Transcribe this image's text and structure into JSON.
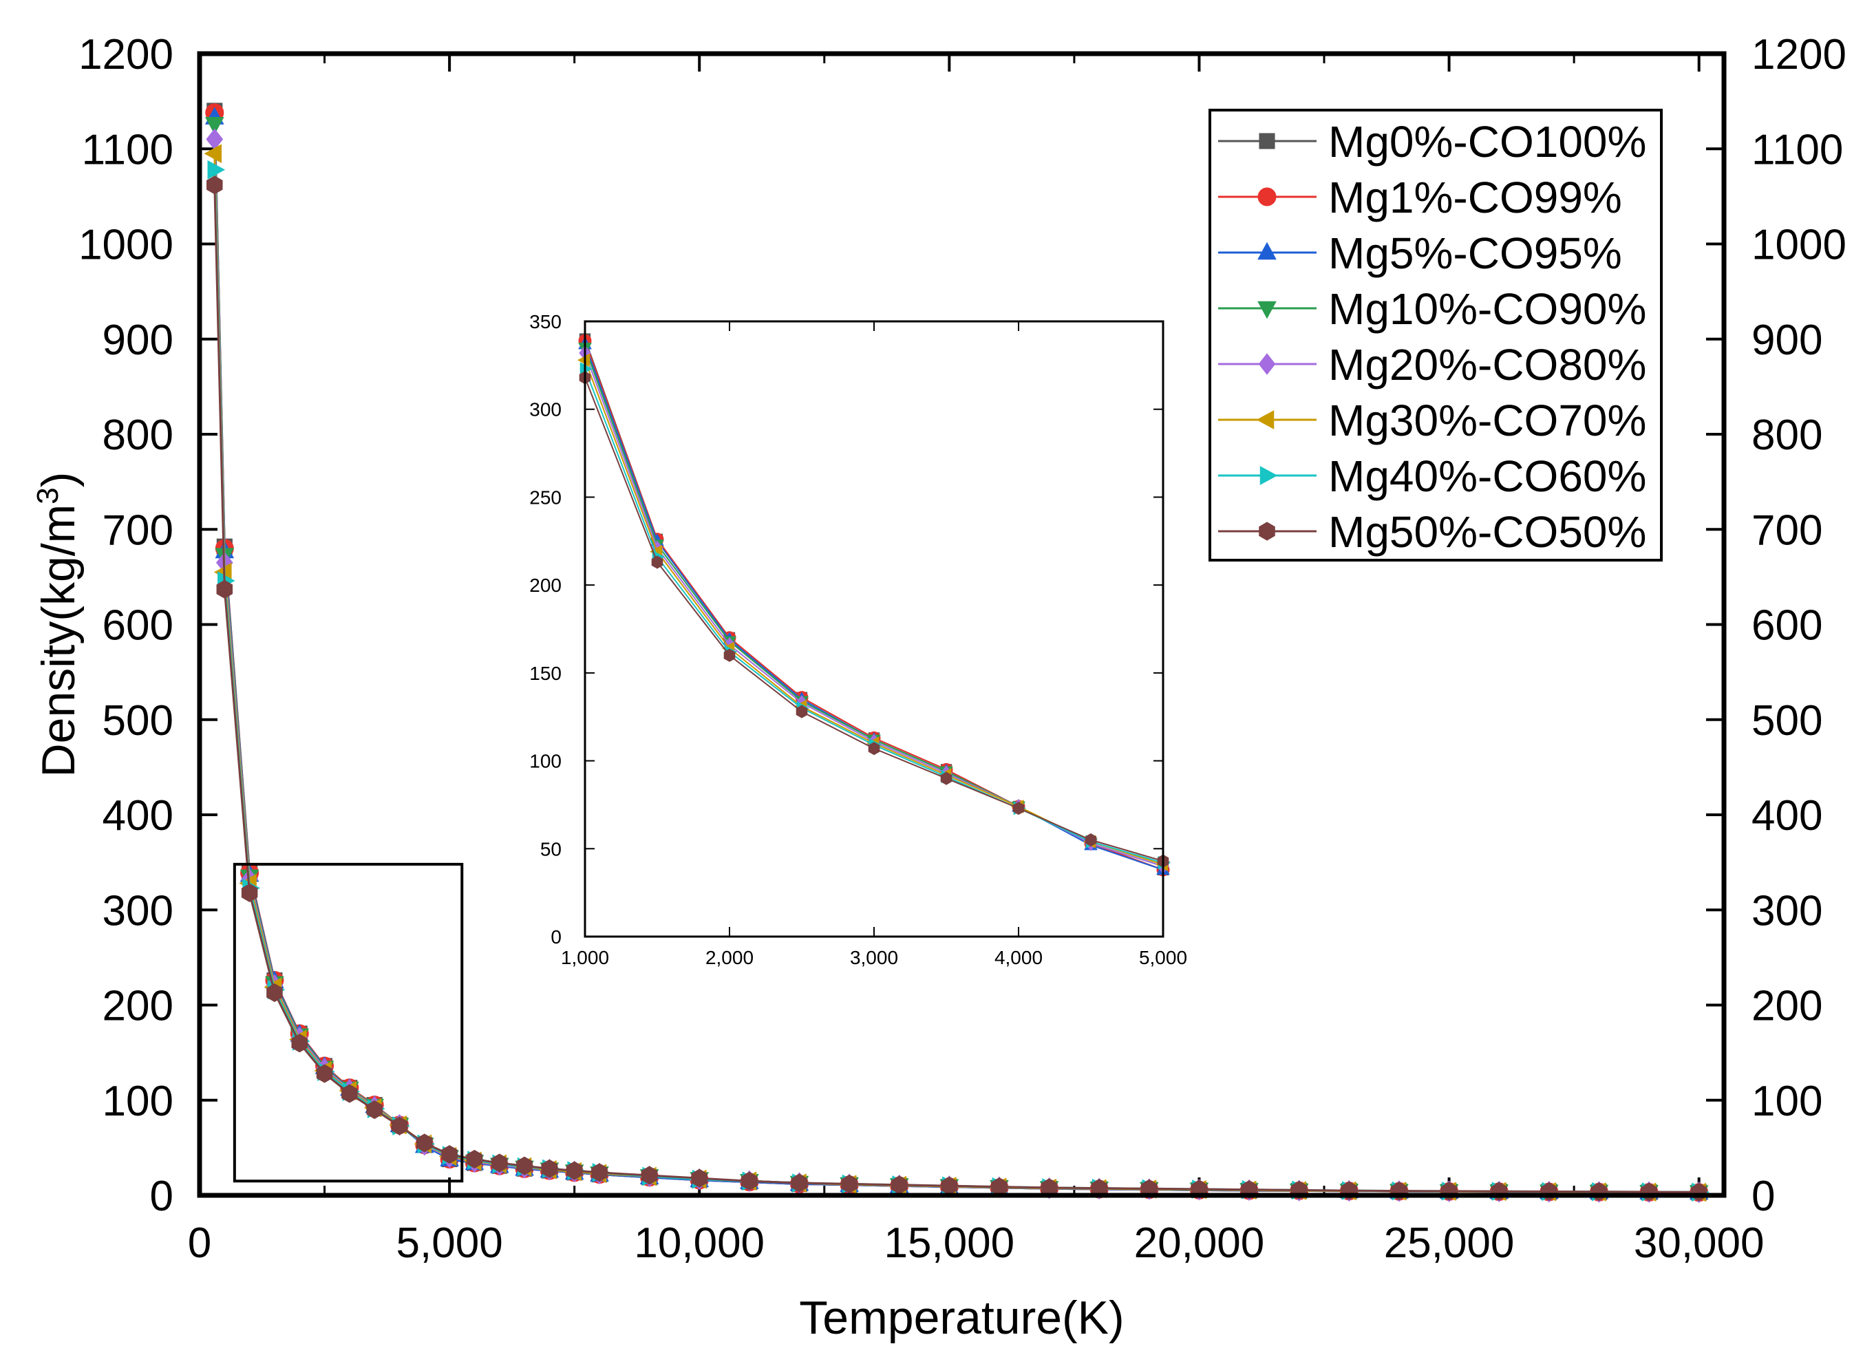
{
  "chart_data": [
    {
      "id": "main",
      "type": "line",
      "title": "",
      "xlabel": "Temperature(K)",
      "ylabel": "Density(kg/m",
      "ylabel_superscript": "3",
      "ylabel_close": ")",
      "xlim": [
        0,
        30500
      ],
      "ylim": [
        0,
        1200
      ],
      "xticks": [
        0,
        5000,
        10000,
        15000,
        20000,
        25000,
        30000
      ],
      "xtick_labels": [
        "0",
        "5,000",
        "10,000",
        "15,000",
        "20,000",
        "25,000",
        "30,000"
      ],
      "yticks": [
        0,
        100,
        200,
        300,
        400,
        500,
        600,
        700,
        800,
        900,
        1000,
        1100,
        1200
      ],
      "ytick_labels": [
        "0",
        "100",
        "200",
        "300",
        "400",
        "500",
        "600",
        "700",
        "800",
        "900",
        "1000",
        "1100",
        "1200"
      ],
      "grid": false,
      "legend_position": "top-right",
      "zoom_box": {
        "x": [
          700,
          5250
        ],
        "y": [
          15,
          348
        ]
      },
      "x": [
        300,
        500,
        1000,
        1500,
        2000,
        2500,
        3000,
        3500,
        4000,
        4500,
        5000,
        5500,
        6000,
        6500,
        7000,
        7500,
        8000,
        9000,
        10000,
        11000,
        12000,
        13000,
        14000,
        15000,
        16000,
        17000,
        18000,
        19000,
        20000,
        21000,
        22000,
        23000,
        24000,
        25000,
        26000,
        27000,
        28000,
        29000,
        30000
      ],
      "series": [
        {
          "name": "Mg0%-CO100%",
          "color": "#555555",
          "marker": "square",
          "values": [
            1140,
            682,
            340,
            226,
            170,
            136,
            113,
            95,
            74,
            53,
            38,
            34,
            31,
            28,
            26,
            24,
            22,
            19,
            16,
            14,
            12,
            11,
            10,
            9,
            8,
            7,
            6.5,
            6,
            5.5,
            5,
            4.8,
            4.5,
            4.2,
            4,
            3.8,
            3.6,
            3.4,
            3.2,
            3
          ]
        },
        {
          "name": "Mg1%-CO99%",
          "color": "#e8322c",
          "marker": "circle",
          "values": [
            1138,
            680,
            339,
            226,
            170,
            136,
            113,
            95,
            74,
            53,
            38,
            34,
            31,
            28,
            26,
            24,
            22,
            19,
            16,
            14,
            12,
            11,
            10,
            9,
            8,
            7,
            6.5,
            6,
            5.5,
            5,
            4.8,
            4.5,
            4.2,
            4,
            3.8,
            3.6,
            3.4,
            3.2,
            3
          ]
        },
        {
          "name": "Mg5%-CO95%",
          "color": "#1f5fd6",
          "marker": "triangle-up",
          "values": [
            1133,
            677,
            337,
            225,
            169,
            135,
            112,
            94,
            74,
            52,
            38,
            34,
            31,
            28,
            26,
            24,
            22,
            19,
            16,
            14,
            12,
            11,
            10,
            9,
            8,
            7,
            6.5,
            6,
            5.5,
            5,
            4.8,
            4.5,
            4.2,
            4,
            3.8,
            3.6,
            3.4,
            3.2,
            3
          ]
        },
        {
          "name": "Mg10%-CO90%",
          "color": "#2a9d4f",
          "marker": "triangle-down",
          "values": [
            1126,
            673,
            335,
            223,
            168,
            134,
            112,
            94,
            74,
            53,
            40,
            35,
            32,
            29,
            27,
            25,
            23,
            20,
            17,
            15,
            13,
            11.5,
            10.5,
            9.5,
            8.5,
            7.5,
            7,
            6.5,
            6,
            5.5,
            5,
            4.7,
            4.4,
            4.2,
            4,
            3.8,
            3.6,
            3.4,
            3.2
          ]
        },
        {
          "name": "Mg20%-CO80%",
          "color": "#a46ce0",
          "marker": "diamond",
          "values": [
            1110,
            665,
            332,
            221,
            166,
            133,
            111,
            93,
            74,
            53,
            40,
            35,
            32,
            29,
            27,
            25,
            23,
            20,
            17,
            15,
            13,
            11.5,
            10.5,
            9.5,
            8.5,
            7.5,
            7,
            6.5,
            6,
            5.5,
            5,
            4.7,
            4.4,
            4.2,
            4,
            3.8,
            3.6,
            3.4,
            3.2
          ]
        },
        {
          "name": "Mg30%-CO70%",
          "color": "#c99a00",
          "marker": "triangle-left",
          "values": [
            1095,
            655,
            328,
            219,
            164,
            131,
            110,
            92,
            74,
            54,
            41,
            36,
            33,
            30,
            27,
            25,
            23,
            20,
            17,
            15,
            13,
            11.5,
            10.5,
            9.5,
            8.5,
            7.5,
            7,
            6.5,
            6,
            5.5,
            5,
            4.7,
            4.4,
            4.2,
            4,
            3.8,
            3.6,
            3.4,
            3.2
          ]
        },
        {
          "name": "Mg40%-CO60%",
          "color": "#18c4c4",
          "marker": "triangle-right",
          "values": [
            1078,
            646,
            323,
            216,
            162,
            130,
            109,
            91,
            73,
            54,
            42,
            37,
            33,
            30,
            28,
            26,
            24,
            20,
            17,
            15,
            13,
            12,
            11,
            10,
            9,
            8,
            7.5,
            7,
            6.5,
            6,
            5.5,
            5,
            4.6,
            4.4,
            4.2,
            4,
            3.8,
            3.6,
            3.4
          ]
        },
        {
          "name": "Mg50%-CO50%",
          "color": "#7a3f3f",
          "marker": "hexagon",
          "values": [
            1062,
            637,
            318,
            213,
            160,
            128,
            107,
            90,
            73,
            55,
            43,
            38,
            34,
            31,
            28,
            26,
            24,
            21,
            18,
            15,
            13,
            12,
            11,
            10,
            9,
            8,
            7.5,
            7,
            6.5,
            6,
            5.5,
            5,
            4.6,
            4.4,
            4.2,
            4,
            3.8,
            3.6,
            3.4
          ]
        }
      ]
    },
    {
      "id": "inset",
      "type": "line",
      "xlim": [
        1000,
        5000
      ],
      "ylim": [
        0,
        350
      ],
      "xticks": [
        1000,
        2000,
        3000,
        4000,
        5000
      ],
      "xtick_labels": [
        "1,000",
        "2,000",
        "3,000",
        "4,000",
        "5,000"
      ],
      "yticks": [
        0,
        50,
        100,
        150,
        200,
        250,
        300,
        350
      ],
      "ytick_labels": [
        "0",
        "50",
        "100",
        "150",
        "200",
        "250",
        "300",
        "350"
      ],
      "x": [
        1000,
        1500,
        2000,
        2500,
        3000,
        3500,
        4000,
        4500,
        5000
      ],
      "series": [
        {
          "name": "Mg0%-CO100%",
          "values": [
            340,
            226,
            170,
            136,
            113,
            95,
            74,
            53,
            38
          ]
        },
        {
          "name": "Mg1%-CO99%",
          "values": [
            339,
            226,
            170,
            136,
            113,
            95,
            74,
            53,
            38
          ]
        },
        {
          "name": "Mg5%-CO95%",
          "values": [
            337,
            225,
            169,
            135,
            112,
            94,
            74,
            52,
            38
          ]
        },
        {
          "name": "Mg10%-CO90%",
          "values": [
            335,
            223,
            168,
            134,
            112,
            94,
            74,
            53,
            40
          ]
        },
        {
          "name": "Mg20%-CO80%",
          "values": [
            332,
            221,
            166,
            133,
            111,
            93,
            74,
            53,
            40
          ]
        },
        {
          "name": "Mg30%-CO70%",
          "values": [
            328,
            219,
            164,
            131,
            110,
            92,
            74,
            54,
            41
          ]
        },
        {
          "name": "Mg40%-CO60%",
          "values": [
            323,
            216,
            162,
            130,
            109,
            91,
            73,
            54,
            42
          ]
        },
        {
          "name": "Mg50%-CO50%",
          "values": [
            318,
            213,
            160,
            128,
            107,
            90,
            73,
            55,
            43
          ]
        }
      ]
    }
  ]
}
